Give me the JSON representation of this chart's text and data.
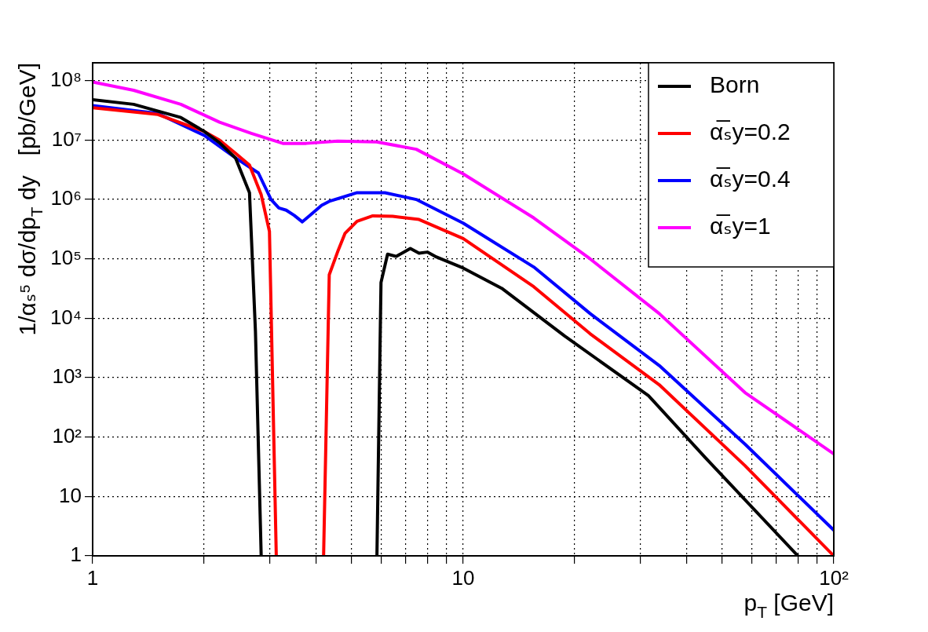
{
  "chart_data": {
    "type": "line",
    "xlabel": "p$_{T}$ [GeV]",
    "ylabel": "1/αₛ⁵ dσ/dp$_{T}$ dy   [pb/GeV]",
    "log": "xy",
    "grid": true,
    "legend": "top right",
    "marker": "none",
    "line_style": "solid",
    "xlim": [
      1,
      100
    ],
    "ylim": [
      1,
      200000000
    ],
    "xticks": [
      1,
      {
        "value": 2,
        "label": null
      },
      {
        "value": 3,
        "label": null
      },
      {
        "value": 4,
        "label": null
      },
      {
        "value": 5,
        "label": null
      },
      {
        "value": 6,
        "label": null
      },
      {
        "value": 7,
        "label": null
      },
      {
        "value": 8,
        "label": null
      },
      {
        "value": 9,
        "label": null
      },
      10,
      {
        "value": 20,
        "label": null
      },
      {
        "value": 30,
        "label": null
      },
      {
        "value": 40,
        "label": null
      },
      {
        "value": 50,
        "label": null
      },
      {
        "value": 60,
        "label": null
      },
      {
        "value": 70,
        "label": null
      },
      {
        "value": 80,
        "label": null
      },
      {
        "value": 90,
        "label": null
      },
      {
        "value": 100,
        "label": "10²"
      }
    ],
    "yticks": [
      1,
      10,
      {
        "value": 100,
        "label": "10²"
      },
      {
        "value": 1000,
        "label": "10³"
      },
      {
        "value": 10000,
        "label": "10⁴"
      },
      {
        "value": 100000,
        "label": "10⁵"
      },
      {
        "value": 1000000,
        "label": "10⁶"
      },
      {
        "value": 10000000,
        "label": "10⁷"
      },
      {
        "value": 100000000,
        "label": "10⁸"
      }
    ],
    "series": [
      {
        "name": "Born",
        "color": "#000000",
        "x": [
          1,
          1.29,
          1.73,
          2,
          2.2,
          2.43,
          2.65,
          2.75,
          2.85,
          4,
          5.85,
          6.0,
          6.25,
          6.6,
          7.2,
          7.6,
          8.0,
          8.4,
          10,
          12.7,
          18.8,
          31.6,
          45,
          80
        ],
        "values": [
          48000000,
          40000000,
          24000000,
          14000000,
          9000000,
          5000000,
          1300000,
          6000,
          1,
          null,
          1,
          40000,
          120000,
          110000,
          150000,
          125000,
          130000,
          110000,
          70000,
          32000,
          5000,
          500,
          45,
          1
        ]
      },
      {
        "name": "α̅ₛy=0.2",
        "color": "#ff0000",
        "x": [
          1,
          1.5,
          2,
          2.2,
          2.43,
          2.65,
          2.85,
          3.0,
          3.13,
          3.6,
          4.2,
          4.35,
          4.6,
          4.8,
          5.17,
          5.7,
          6.45,
          7.6,
          10,
          15.5,
          22,
          33.8,
          57.6,
          100
        ],
        "values": [
          35000000,
          27000000,
          14000000,
          10000000,
          6000000,
          3800000,
          1200000,
          290000,
          1,
          null,
          1,
          54000,
          140000,
          270000,
          430000,
          530000,
          520000,
          460000,
          220000,
          34000,
          5500,
          760,
          33,
          1
        ]
      },
      {
        "name": "α̅ₛy=0.4",
        "color": "#0000ff",
        "x": [
          1,
          1.5,
          2,
          2.43,
          2.8,
          3.03,
          3.18,
          3.33,
          3.5,
          3.68,
          3.86,
          4.15,
          4.35,
          5.17,
          6.15,
          7.47,
          10,
          15.5,
          22,
          33.8,
          57.6,
          100
        ],
        "values": [
          38000000,
          28000000,
          12000000,
          5000000,
          2800000,
          1000000,
          720000,
          660000,
          540000,
          420000,
          540000,
          800000,
          930000,
          1300000,
          1300000,
          1000000,
          400000,
          73000,
          12000,
          1600,
          76,
          2.7
        ]
      },
      {
        "name": "α̅ₛy=1",
        "color": "#ff00ff",
        "x": [
          1,
          1.29,
          1.73,
          2.2,
          2.68,
          3.26,
          3.77,
          4.58,
          5.84,
          7.47,
          10,
          15.5,
          22,
          33.8,
          57.6,
          100
        ],
        "values": [
          95000000,
          69000000,
          40000000,
          20000000,
          13000000,
          8800000,
          8800000,
          9600000,
          9300000,
          7000000,
          2700000,
          490000,
          100000,
          12000,
          560,
          52
        ]
      }
    ]
  }
}
